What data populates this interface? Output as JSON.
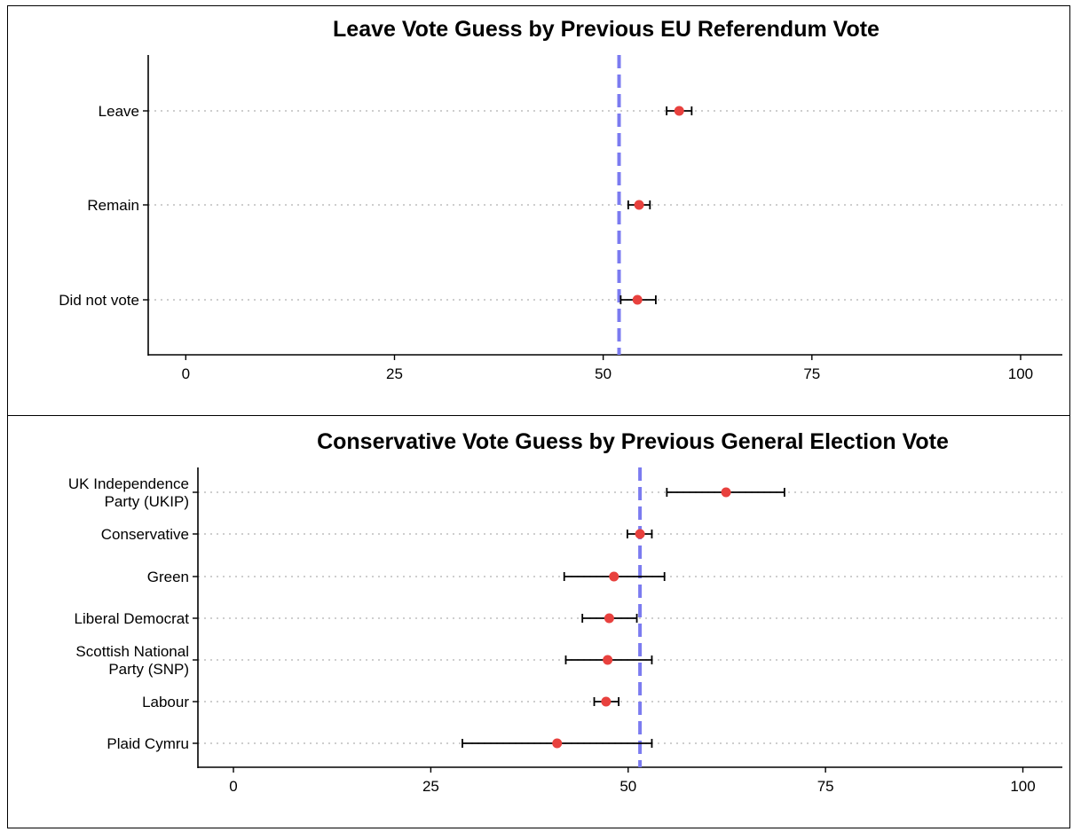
{
  "chart_data": [
    {
      "type": "scatter",
      "title": "Leave Vote Guess by Previous EU Referendum Vote",
      "xlabel": "",
      "ylabel": "",
      "xlim": [
        -4.5,
        105
      ],
      "xticks": [
        "0",
        "25",
        "50",
        "75",
        "100"
      ],
      "reference_line": 51.9,
      "grid": "horizontal dotted",
      "categories": [
        [
          "Leave"
        ],
        [
          "Remain"
        ],
        [
          "Did not vote"
        ]
      ],
      "estimates": [
        59.1,
        54.3,
        54.1
      ],
      "ci_low": [
        57.6,
        53.0,
        52.1
      ],
      "ci_high": [
        60.6,
        55.6,
        56.3
      ]
    },
    {
      "type": "scatter",
      "title": "Conservative Vote Guess by Previous General Election Vote",
      "xlabel": "",
      "ylabel": "",
      "xlim": [
        -4.5,
        105
      ],
      "xticks": [
        "0",
        "25",
        "50",
        "75",
        "100"
      ],
      "reference_line": 51.5,
      "grid": "horizontal dotted",
      "categories": [
        [
          "UK Independence",
          "Party (UKIP)"
        ],
        [
          "Conservative"
        ],
        [
          "Green"
        ],
        [
          "Liberal Democrat"
        ],
        [
          "Scottish National",
          "Party (SNP)"
        ],
        [
          "Labour"
        ],
        [
          "Plaid Cymru"
        ]
      ],
      "estimates": [
        62.4,
        51.5,
        48.2,
        47.6,
        47.4,
        47.2,
        41.0
      ],
      "ci_low": [
        54.9,
        49.9,
        41.9,
        44.2,
        42.1,
        45.7,
        29.0
      ],
      "ci_high": [
        69.8,
        53.0,
        54.6,
        51.1,
        53.0,
        48.8,
        53.0
      ]
    }
  ],
  "colors": {
    "point": "#E8413E",
    "reference_line": "#7B7BF0",
    "gridline": "#BDBDBD",
    "axis": "#000000"
  }
}
